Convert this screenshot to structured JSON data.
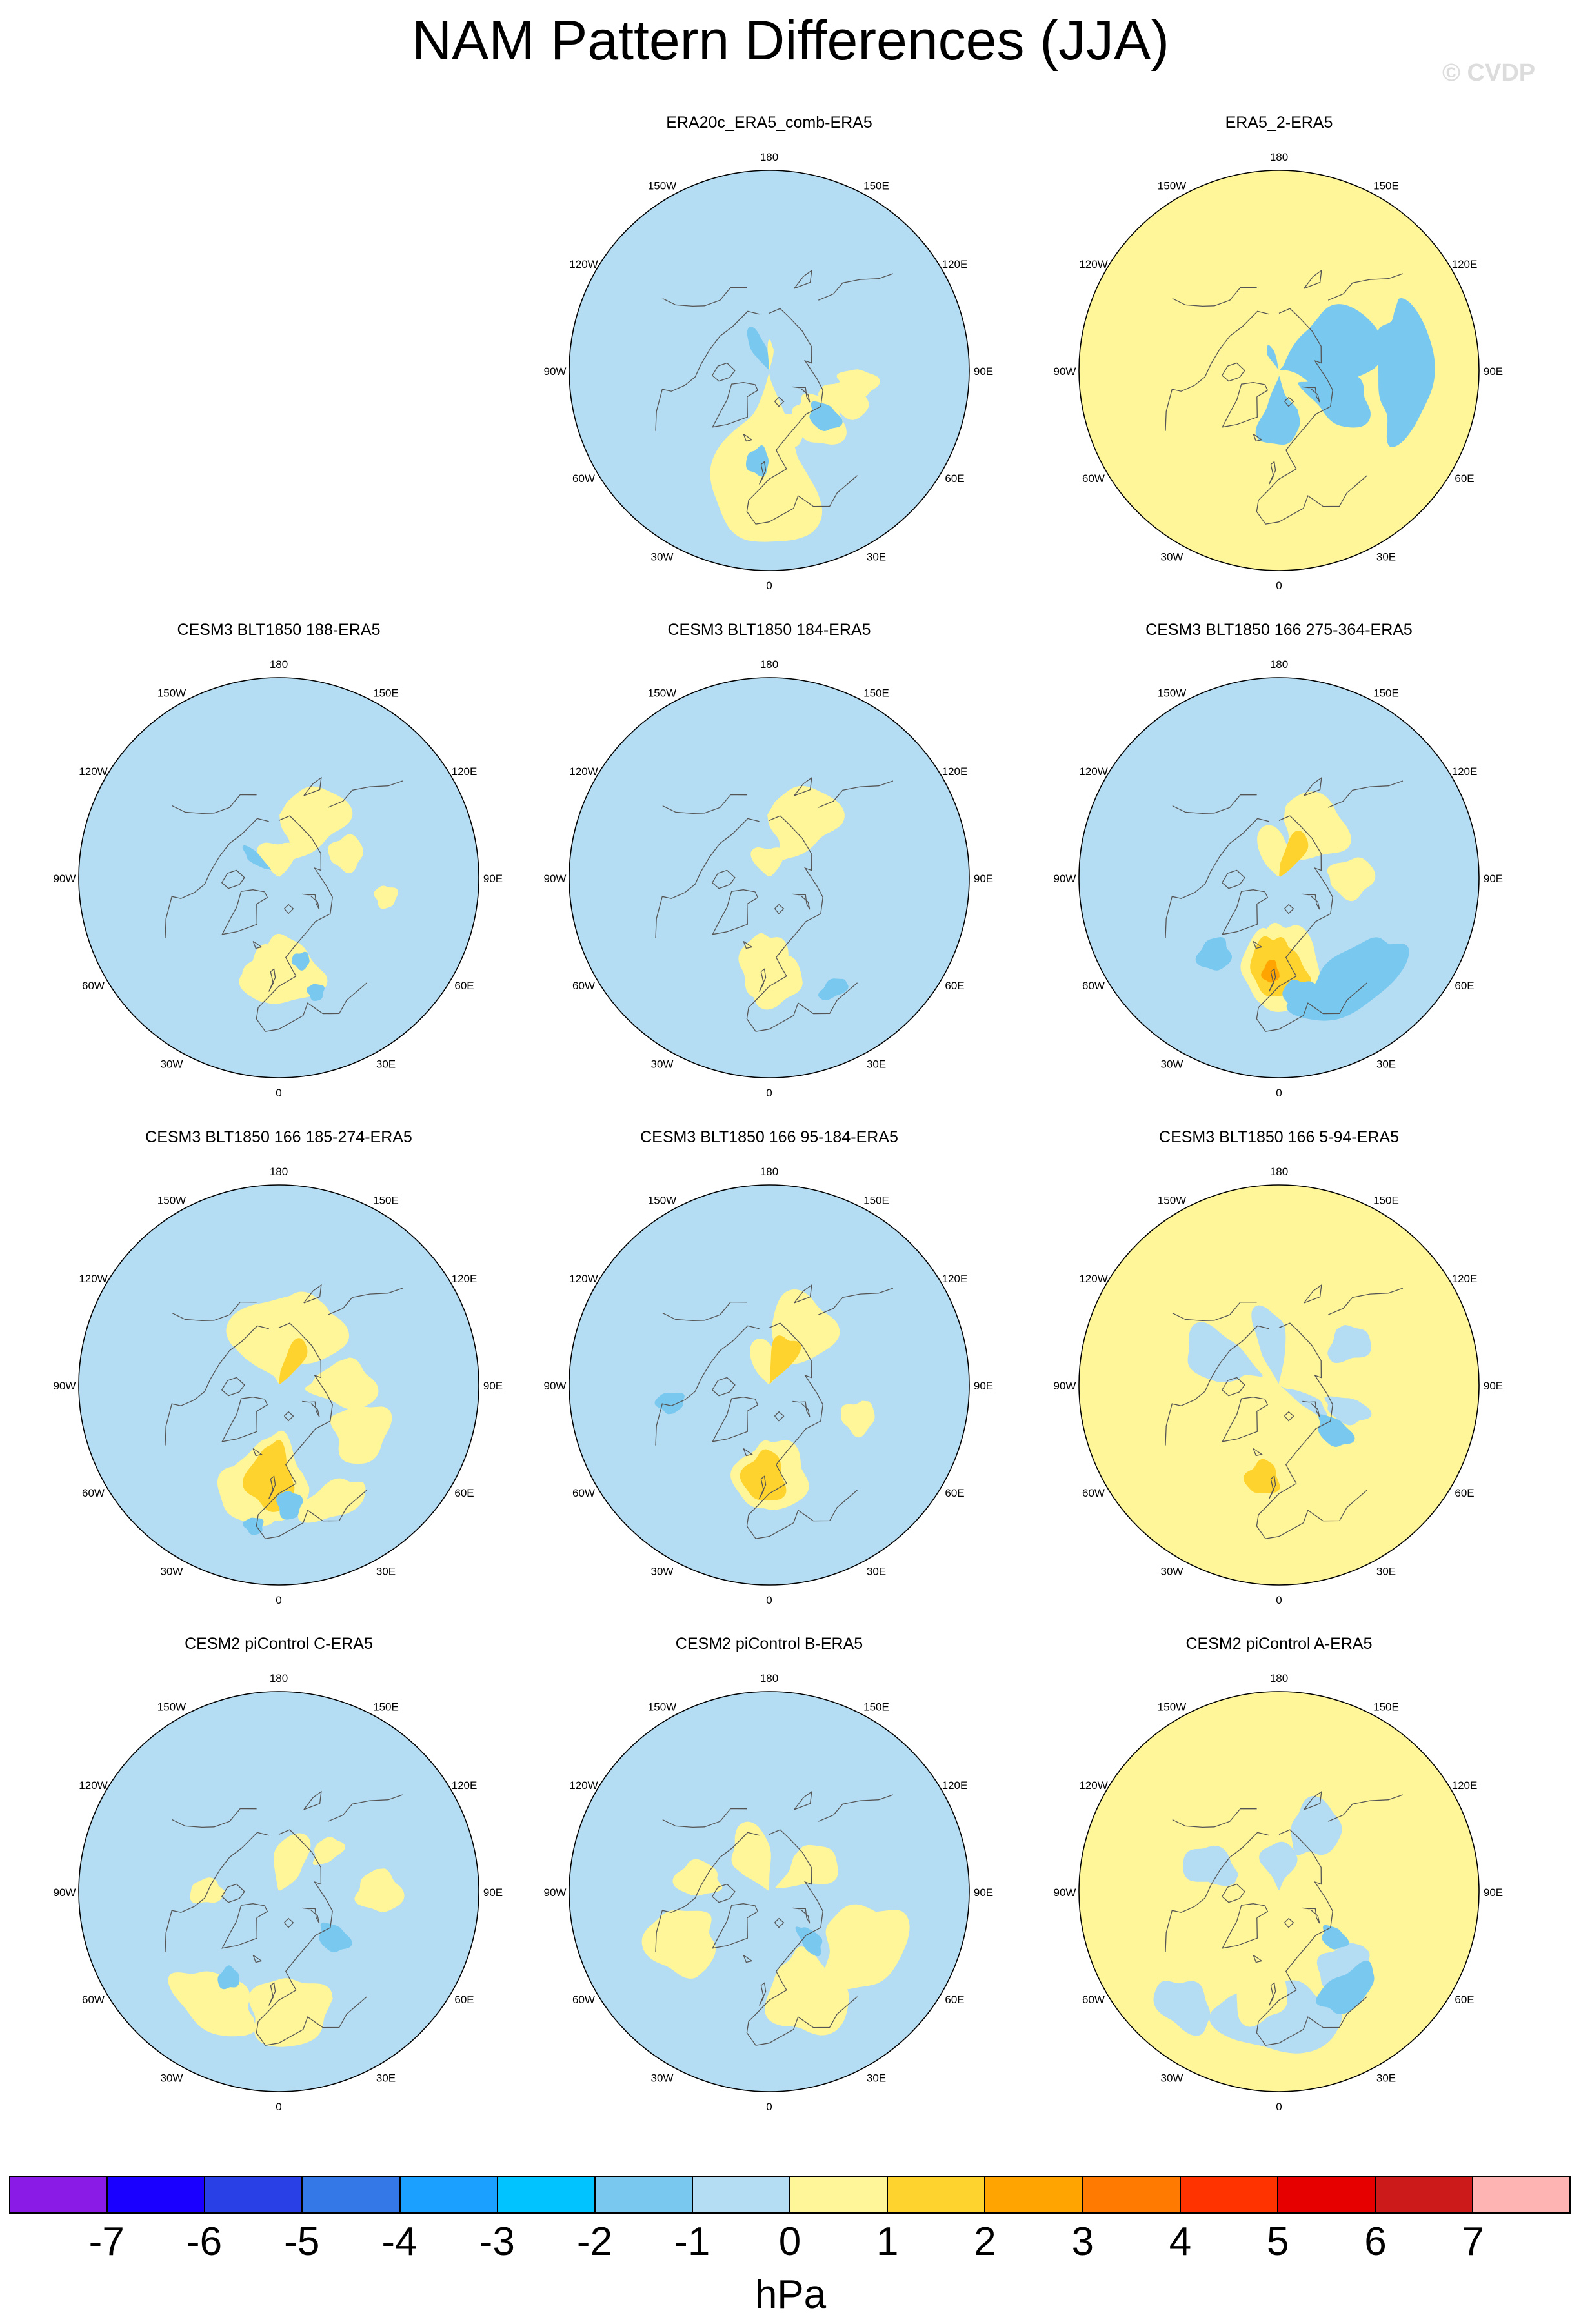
{
  "title": "NAM Pattern Differences (JJA)",
  "watermark": "© CVDP",
  "lon_labels": [
    "180",
    "150E",
    "120E",
    "90E",
    "60E",
    "30E",
    "0",
    "30W",
    "60W",
    "90W",
    "120W",
    "150W"
  ],
  "panels": [
    {
      "title": "ERA20c_ERA5_comb-ERA5",
      "background": "blue",
      "positive": [
        [
          8,
          20,
          14,
          6
        ],
        [
          -2,
          -3,
          26,
          30
        ],
        [
          -5,
          -7,
          15,
          13
        ],
        [
          6,
          45,
          19,
          10
        ],
        [
          2,
          70,
          12,
          9
        ],
        [
          -1,
          82,
          9,
          7
        ],
        [
          30,
          175,
          12,
          10
        ]
      ],
      "negative": [
        [
          -2,
          -7,
          7,
          5
        ],
        [
          5,
          50,
          10,
          6
        ],
        [
          25,
          -155,
          20,
          10
        ]
      ]
    },
    {
      "title": "ERA5_2-ERA5",
      "background": "yellow",
      "positive": [],
      "negative": [
        [
          12,
          110,
          40,
          18
        ],
        [
          15,
          0,
          22,
          12
        ],
        [
          8,
          65,
          20,
          13
        ],
        [
          28,
          -155,
          12,
          8
        ],
        [
          -15,
          90,
          30,
          10
        ],
        [
          30,
          120,
          20,
          10
        ]
      ]
    },
    {
      "title": "CESM3 BLT1850 188-ERA5",
      "background": "blue",
      "positive": [
        [
          35,
          180,
          50,
          20
        ],
        [
          8,
          150,
          25,
          14
        ],
        [
          -4,
          -5,
          16,
          10
        ],
        [
          -3,
          3,
          22,
          12
        ],
        [
          5,
          110,
          14,
          6
        ],
        [
          -8,
          80,
          6,
          4
        ]
      ],
      "negative": [
        [
          20,
          -130,
          10,
          6
        ],
        [
          -12,
          18,
          4,
          3
        ],
        [
          0,
          15,
          6,
          3
        ]
      ]
    },
    {
      "title": "CESM3 BLT1850 184-ERA5",
      "background": "blue",
      "positive": [
        [
          35,
          180,
          50,
          18
        ],
        [
          8,
          150,
          27,
          14
        ],
        [
          0,
          -3,
          17,
          11
        ],
        [
          -5,
          3,
          15,
          10
        ]
      ],
      "negative": [
        [
          -15,
          30,
          7,
          3
        ]
      ]
    },
    {
      "title": "CESM3 BLT1850 166 275-364-ERA5",
      "background": "blue",
      "positive": [
        [
          30,
          -175,
          45,
          17
        ],
        [
          10,
          145,
          30,
          13
        ],
        [
          0,
          -5,
          20,
          13
        ],
        [
          0,
          3,
          24,
          15
        ],
        [
          5,
          90,
          16,
          8
        ]
      ],
      "strong": [
        [
          25,
          150,
          24,
          12
        ],
        [
          0,
          -5,
          14,
          10
        ],
        [
          -3,
          3,
          14,
          9
        ]
      ],
      "deep": [
        [
          -3,
          -5,
          5,
          4
        ]
      ],
      "negative": [
        [
          -15,
          35,
          28,
          10
        ],
        [
          -5,
          -40,
          9,
          6
        ],
        [
          -12,
          10,
          8,
          6
        ]
      ]
    },
    {
      "title": "CESM3 BLT1850 166 185-274-ERA5",
      "background": "blue",
      "positive": [
        [
          15,
          180,
          50,
          18
        ],
        [
          10,
          150,
          30,
          14
        ],
        [
          -8,
          -15,
          16,
          12
        ],
        [
          -2,
          -5,
          22,
          15
        ],
        [
          -15,
          25,
          16,
          6
        ],
        [
          -3,
          60,
          18,
          10
        ],
        [
          8,
          90,
          20,
          12
        ]
      ],
      "strong": [
        [
          25,
          150,
          22,
          12
        ],
        [
          -2,
          -5,
          14,
          12
        ]
      ],
      "negative": [
        [
          -12,
          5,
          6,
          5
        ],
        [
          -20,
          -10,
          4,
          3
        ]
      ]
    },
    {
      "title": "CESM3 BLT1850 166 95-184-ERA5",
      "background": "blue",
      "positive": [
        [
          30,
          -175,
          45,
          15
        ],
        [
          10,
          150,
          28,
          15
        ],
        [
          -2,
          -3,
          18,
          12
        ],
        [
          -1,
          3,
          22,
          12
        ],
        [
          -3,
          70,
          10,
          6
        ]
      ],
      "strong": [
        [
          22,
          155,
          22,
          11
        ],
        [
          -2,
          -3,
          13,
          9
        ]
      ],
      "negative": [
        [
          -5,
          -80,
          6,
          5
        ]
      ]
    },
    {
      "title": "CESM3 BLT1850 166 5-94-ERA5",
      "background": "yellow",
      "positive": [
        [
          -2,
          -5,
          14,
          10
        ]
      ],
      "strong": [
        [
          -3,
          -10,
          10,
          6
        ]
      ],
      "blue_patch": [
        [
          18,
          -170,
          20,
          15
        ],
        [
          8,
          -115,
          20,
          14
        ],
        [
          5,
          70,
          10,
          8
        ],
        [
          20,
          60,
          12,
          9
        ],
        [
          2,
          120,
          12,
          8
        ]
      ],
      "negative": [
        [
          5,
          50,
          10,
          7
        ]
      ]
    },
    {
      "title": "CESM2 piControl C-ERA5",
      "background": "blue",
      "positive": [
        [
          25,
          160,
          35,
          15
        ],
        [
          -15,
          -30,
          20,
          10
        ],
        [
          -12,
          5,
          20,
          12
        ],
        [
          -5,
          90,
          12,
          8
        ],
        [
          5,
          -90,
          10,
          6
        ],
        [
          8,
          130,
          10,
          6
        ]
      ],
      "negative": [
        [
          5,
          50,
          10,
          6
        ],
        [
          -5,
          -30,
          6,
          4
        ]
      ]
    },
    {
      "title": "CESM2 piControl B-ERA5",
      "background": "blue",
      "positive": [
        [
          20,
          -155,
          30,
          14
        ],
        [
          15,
          120,
          22,
          12
        ],
        [
          -8,
          20,
          20,
          15
        ],
        [
          -8,
          60,
          24,
          14
        ],
        [
          -5,
          -60,
          20,
          12
        ],
        [
          5,
          -100,
          14,
          8
        ]
      ],
      "negative": [
        [
          8,
          40,
          8,
          6
        ]
      ]
    },
    {
      "title": "CESM2 piControl A-ERA5",
      "background": "yellow",
      "positive": [
        [
          -5,
          -10,
          14,
          12
        ]
      ],
      "blue_patch": [
        [
          22,
          -180,
          30,
          10
        ],
        [
          5,
          150,
          20,
          10
        ],
        [
          5,
          -110,
          15,
          10
        ],
        [
          -5,
          40,
          16,
          8
        ],
        [
          -15,
          0,
          28,
          12
        ],
        [
          -22,
          -40,
          12,
          8
        ]
      ],
      "negative": [
        [
          -12,
          35,
          16,
          6
        ],
        [
          5,
          50,
          8,
          5
        ]
      ]
    }
  ],
  "colorbar": {
    "unit": "hPa",
    "ticks": [
      "-7",
      "-6",
      "-5",
      "-4",
      "-3",
      "-2",
      "-1",
      "0",
      "1",
      "2",
      "3",
      "4",
      "5",
      "6",
      "7"
    ],
    "colors": [
      "#8a1be6",
      "#1a00ff",
      "#2840e6",
      "#3478e8",
      "#1ca0ff",
      "#00c3ff",
      "#78c8f0",
      "#b4dcf2",
      "#fff599",
      "#ffd32d",
      "#ffa400",
      "#ff7a00",
      "#ff3300",
      "#e60000",
      "#cc1a1a",
      "#ffb4b4"
    ]
  },
  "map_colors": {
    "blue": "#b4dcf2",
    "yellow": "#fff599",
    "mid_blue": "#78c8f0",
    "gold": "#ffd32d",
    "orange": "#ffa400"
  }
}
